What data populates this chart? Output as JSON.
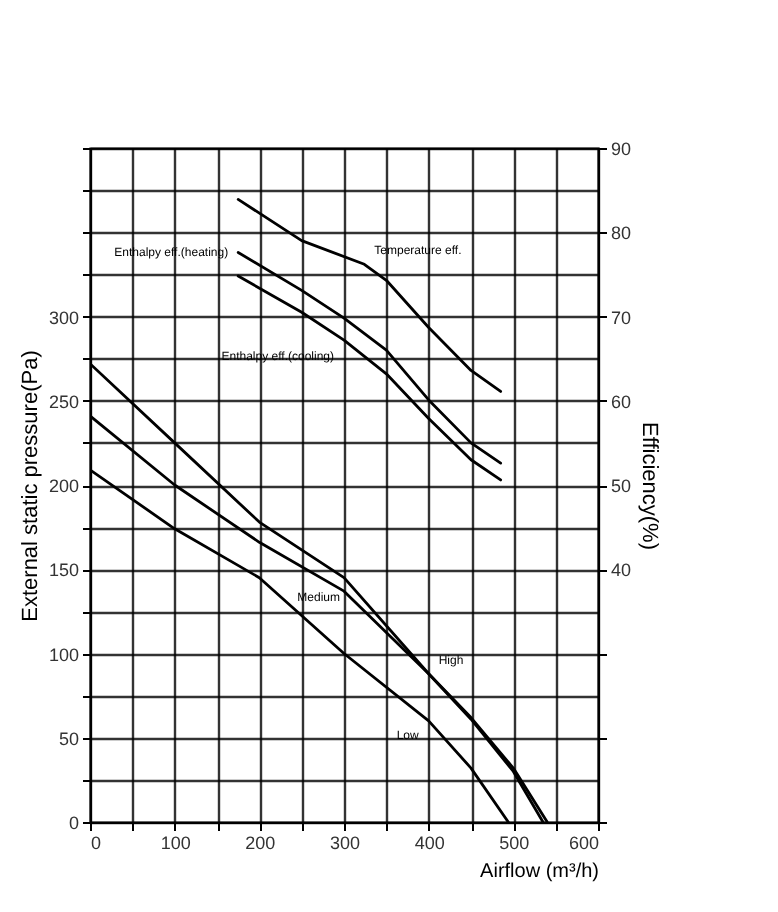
{
  "chart_data": {
    "type": "line",
    "xlabel": "Airflow (m³/h)",
    "ylabel": "External static pressure(Pa)",
    "y2label": "Efficiency(%)",
    "xlim": [
      0,
      600
    ],
    "xticks": [
      0,
      {
        "value": 50,
        "label": null
      },
      100,
      {
        "value": 150,
        "label": null
      },
      200,
      {
        "value": 250,
        "label": null
      },
      300,
      {
        "value": 350,
        "label": null
      },
      400,
      {
        "value": 450,
        "label": null
      },
      500,
      {
        "value": 550,
        "label": null
      },
      600
    ],
    "ylim": [
      0,
      400
    ],
    "yticks": [
      0,
      {
        "value": 25,
        "label": null
      },
      50,
      {
        "value": 75,
        "label": null
      },
      100,
      {
        "value": 125,
        "label": null
      },
      150,
      {
        "value": 175,
        "label": null
      },
      200,
      {
        "value": 225,
        "label": null
      },
      250,
      {
        "value": 275,
        "label": null
      },
      300,
      {
        "value": 325,
        "label": null
      },
      {
        "value": 350,
        "label": null
      },
      {
        "value": 375,
        "label": null
      },
      {
        "value": 400,
        "label": null
      }
    ],
    "y2lim": [
      10,
      90
    ],
    "y2ticks": [
      {
        "value": 10,
        "label": null
      },
      {
        "value": 20,
        "label": null
      },
      {
        "value": 30,
        "label": null
      },
      40,
      50,
      60,
      70,
      80,
      90
    ],
    "grid": true,
    "legend": false,
    "marker": "none",
    "line_style": "solid",
    "series": [
      {
        "name": "High",
        "color": "#000000",
        "x": [
          0,
          100,
          200,
          300,
          400,
          450,
          500,
          540
        ],
        "values": [
          272,
          225,
          178,
          145,
          88,
          62,
          32,
          0
        ]
      },
      {
        "name": "Medium",
        "color": "#000000",
        "x": [
          0,
          100,
          200,
          300,
          400,
          450,
          500,
          535
        ],
        "values": [
          241,
          200,
          166,
          137,
          88,
          61,
          30,
          0
        ]
      },
      {
        "name": "Low",
        "color": "#000000",
        "x": [
          0,
          100,
          200,
          300,
          400,
          450,
          494
        ],
        "values": [
          209,
          174,
          145,
          100,
          60,
          32,
          0
        ]
      },
      {
        "name": "Temperature eff.",
        "color": "#000000",
        "axis": "y2",
        "x": [
          175,
          250,
          324,
          350,
          400,
          450,
          485
        ],
        "values": [
          83.9,
          79,
          76.2,
          74.3,
          68.7,
          63.6,
          61.1
        ]
      },
      {
        "name": "Enthalpy eff.(heating)",
        "color": "#000000",
        "axis": "y2",
        "x": [
          175,
          250,
          300,
          350,
          400,
          450,
          485
        ],
        "values": [
          77.6,
          73.1,
          69.8,
          66,
          60.1,
          55,
          52.6
        ]
      },
      {
        "name": "Enthalpy eff.(cooling)",
        "color": "#000000",
        "axis": "y2",
        "x": [
          175,
          250,
          300,
          350,
          400,
          450,
          485
        ],
        "values": [
          74.8,
          70.5,
          67.2,
          63.2,
          57.9,
          53,
          50.6
        ]
      }
    ]
  }
}
